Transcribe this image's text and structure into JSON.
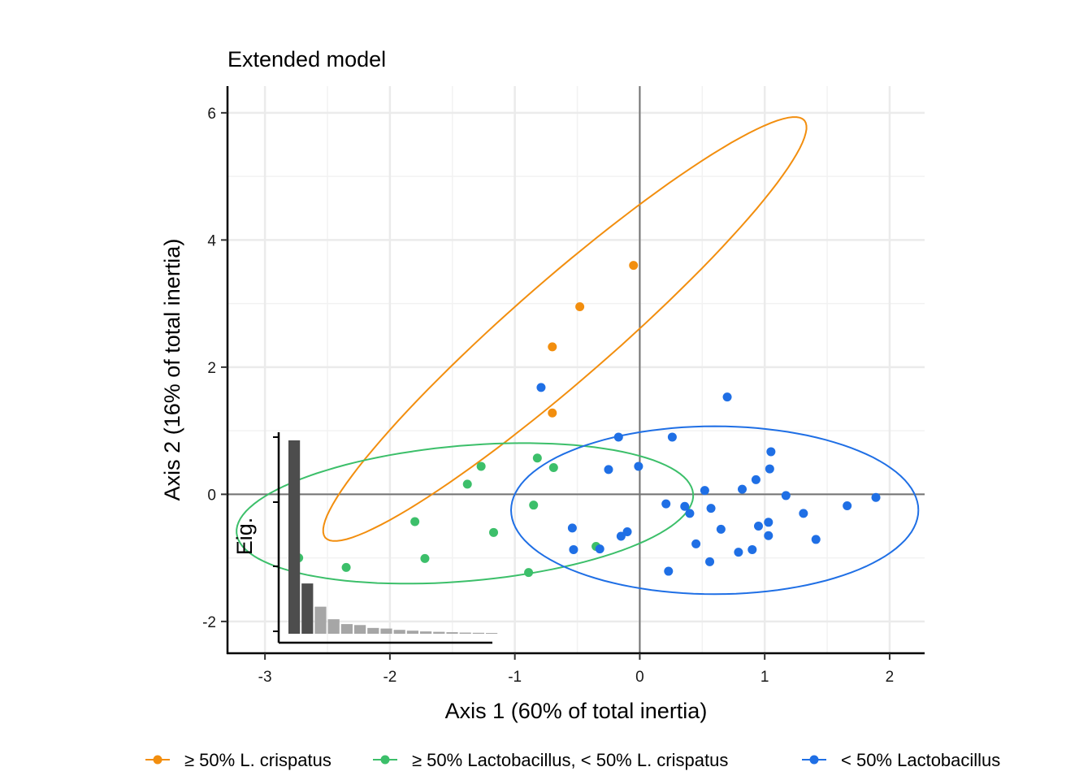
{
  "chart_data": {
    "type": "scatter",
    "title": "Extended model",
    "xlabel": "Axis 1 (60% of total inertia)",
    "ylabel": "Axis 2 (16% of total inertia)",
    "xlim": [
      -3.3,
      2.28
    ],
    "ylim": [
      -2.5,
      6.42
    ],
    "x_ticks": [
      -3,
      -2,
      -1,
      0,
      1,
      2
    ],
    "y_ticks": [
      -2,
      0,
      2,
      4,
      6
    ],
    "grid": true,
    "legend_position": "bottom",
    "series": [
      {
        "name": "≥ 50% L. crispatus",
        "color": "#F28E0E",
        "points": [
          [
            -0.05,
            3.6
          ],
          [
            -0.48,
            2.95
          ],
          [
            -0.7,
            2.32
          ],
          [
            -0.7,
            1.28
          ]
        ],
        "ellipse": {
          "cx": -0.6,
          "cy": 2.6,
          "angle_deg": 60.5,
          "a": 3.82,
          "b": 0.52
        }
      },
      {
        "name": "≥ 50% Lactobacillus, < 50% L. crispatus",
        "color": "#3CBF6A",
        "points": [
          [
            -2.73,
            -1.0
          ],
          [
            -2.35,
            -1.15
          ],
          [
            -1.8,
            -0.43
          ],
          [
            -1.72,
            -1.01
          ],
          [
            -1.38,
            0.16
          ],
          [
            -1.27,
            0.44
          ],
          [
            -1.17,
            -0.6
          ],
          [
            -0.89,
            -1.23
          ],
          [
            -0.85,
            -0.17
          ],
          [
            -0.82,
            0.57
          ],
          [
            -0.69,
            0.42
          ],
          [
            -0.35,
            -0.82
          ]
        ],
        "ellipse": {
          "cx": -1.4,
          "cy": -0.3,
          "angle_deg": 13,
          "a": 1.86,
          "b": 1.05
        }
      },
      {
        "name": "< 50% Lactobacillus",
        "color": "#1F6FE5",
        "points": [
          [
            -0.79,
            1.68
          ],
          [
            -0.54,
            -0.53
          ],
          [
            -0.53,
            -0.87
          ],
          [
            -0.32,
            -0.86
          ],
          [
            -0.25,
            0.39
          ],
          [
            -0.17,
            0.9
          ],
          [
            -0.15,
            -0.66
          ],
          [
            -0.1,
            -0.59
          ],
          [
            -0.01,
            0.44
          ],
          [
            0.21,
            -0.15
          ],
          [
            0.23,
            -1.21
          ],
          [
            0.26,
            0.9
          ],
          [
            0.36,
            -0.19
          ],
          [
            0.4,
            -0.3
          ],
          [
            0.45,
            -0.78
          ],
          [
            0.52,
            0.06
          ],
          [
            0.56,
            -1.06
          ],
          [
            0.57,
            -0.22
          ],
          [
            0.65,
            -0.55
          ],
          [
            0.7,
            1.53
          ],
          [
            0.79,
            -0.91
          ],
          [
            0.82,
            0.08
          ],
          [
            0.9,
            -0.87
          ],
          [
            0.93,
            0.23
          ],
          [
            0.95,
            -0.5
          ],
          [
            1.03,
            -0.65
          ],
          [
            1.03,
            -0.44
          ],
          [
            1.04,
            0.4
          ],
          [
            1.05,
            0.67
          ],
          [
            1.17,
            -0.02
          ],
          [
            1.31,
            -0.3
          ],
          [
            1.41,
            -0.71
          ],
          [
            1.66,
            -0.18
          ],
          [
            1.89,
            -0.05
          ]
        ],
        "ellipse": {
          "cx": 0.6,
          "cy": -0.25,
          "angle_deg": 0,
          "a": 1.63,
          "b": 1.32
        }
      }
    ],
    "inset": {
      "type": "bar",
      "ylabel": "Eig.",
      "values": [
        1.0,
        0.26,
        0.14,
        0.075,
        0.05,
        0.045,
        0.03,
        0.027,
        0.02,
        0.016,
        0.012,
        0.01,
        0.008,
        0.006,
        0.005,
        0.004
      ],
      "highlight_count": 2,
      "highlight_color": "#4D4D4D",
      "other_color": "#A6A6A6"
    }
  }
}
